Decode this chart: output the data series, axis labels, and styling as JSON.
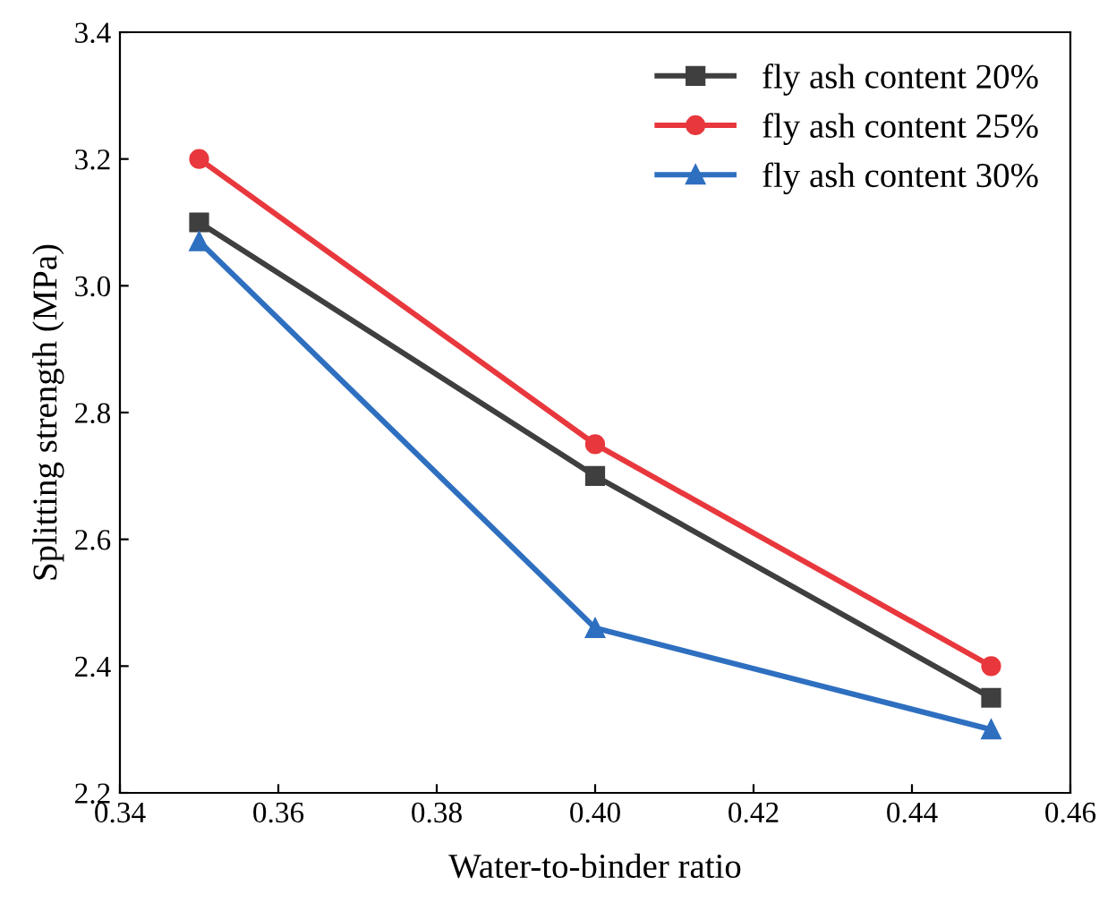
{
  "chart_data": {
    "type": "line",
    "xlabel": "Water-to-binder ratio",
    "ylabel": "Splitting strength (MPa)",
    "x": [
      0.35,
      0.4,
      0.45
    ],
    "series": [
      {
        "name": "fly ash content 20%",
        "color": "#3f3f3f",
        "marker": "square",
        "values": [
          3.1,
          2.7,
          2.35
        ]
      },
      {
        "name": "fly ash content 25%",
        "color": "#e8383d",
        "marker": "circle",
        "values": [
          3.2,
          2.75,
          2.4
        ]
      },
      {
        "name": "fly ash content 30%",
        "color": "#2e6fc0",
        "marker": "triangle",
        "values": [
          3.07,
          2.46,
          2.3
        ]
      }
    ],
    "xlim": [
      0.34,
      0.46
    ],
    "xticks": [
      {
        "value": 0.34,
        "label": "0.34"
      },
      {
        "value": 0.36,
        "label": "0.36"
      },
      {
        "value": 0.38,
        "label": "0.38"
      },
      {
        "value": 0.4,
        "label": "0.40"
      },
      {
        "value": 0.42,
        "label": "0.42"
      },
      {
        "value": 0.44,
        "label": "0.44"
      },
      {
        "value": 0.46,
        "label": "0.46"
      }
    ],
    "ylim": [
      2.2,
      3.4
    ],
    "yticks": [
      2.2,
      2.4,
      2.6,
      2.8,
      {
        "value": 3.0,
        "label": "3.0"
      },
      3.2,
      3.4
    ],
    "grid": false,
    "legend": "top right",
    "line_style": "solid"
  }
}
